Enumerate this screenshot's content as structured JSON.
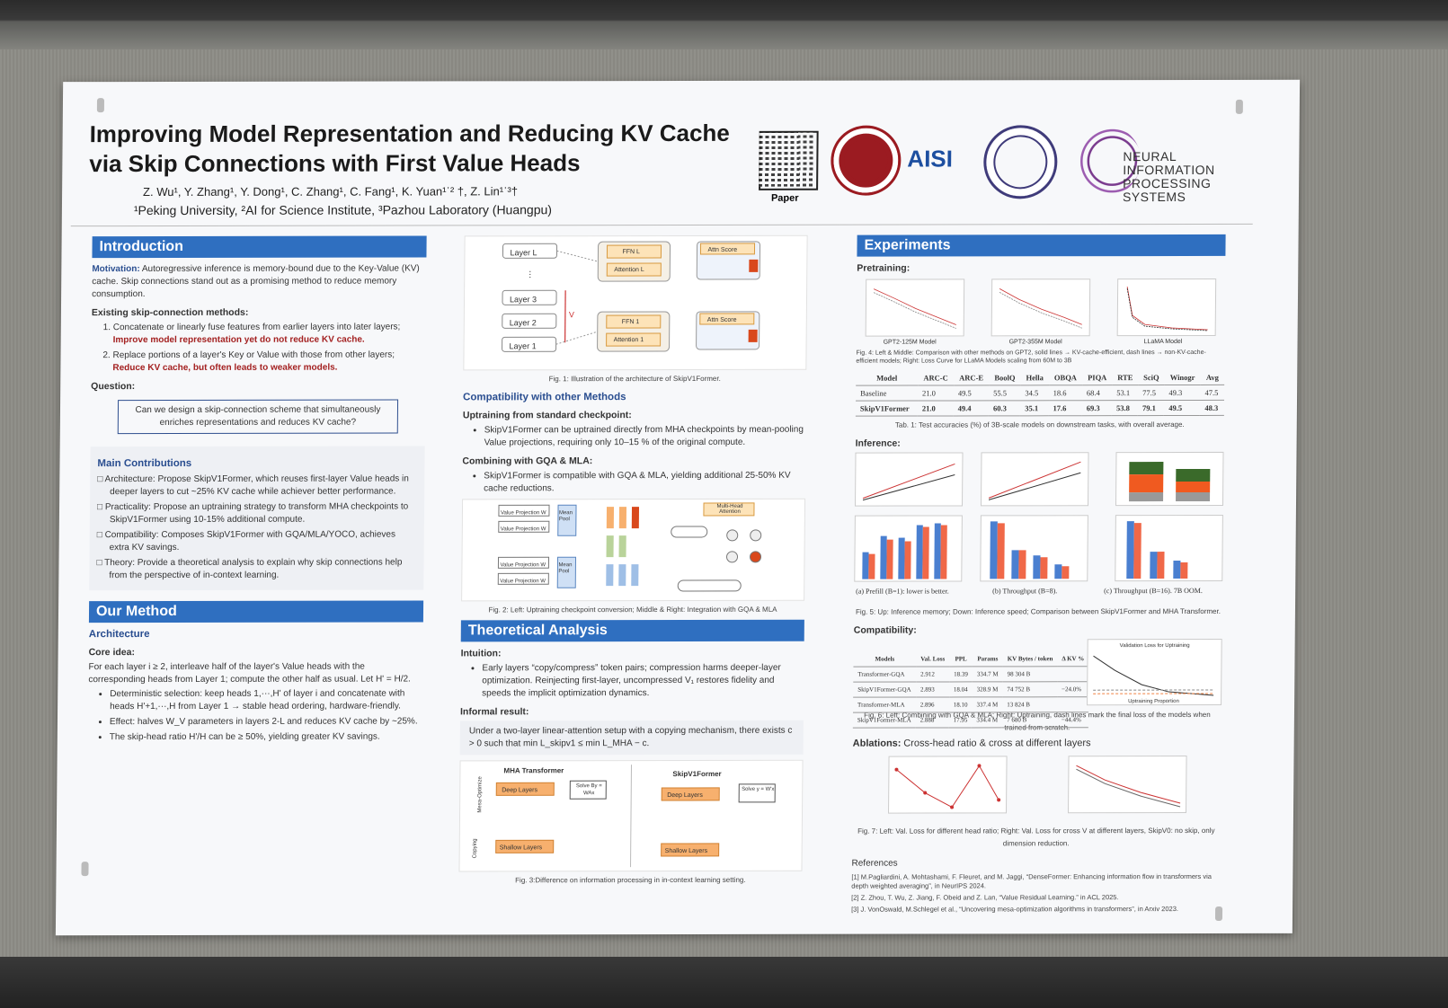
{
  "header": {
    "title": "Improving Model Representation and Reducing KV Cache via Skip Connections with First Value Heads",
    "authors": "Z. Wu¹, Y. Zhang¹, Y. Dong¹, C. Zhang¹, C. Fang¹, K. Yuan¹ˈ² †, Z. Lin¹ˈ³†",
    "affiliations": "¹Peking University, ²AI for Science Institute, ³Pazhou Laboratory (Huangpu)",
    "qr_label": "Paper",
    "aisi_logo": "AISI",
    "neurips_text": "NEURAL INFORMATION PROCESSING SYSTEMS"
  },
  "intro": {
    "heading": "Introduction",
    "motivation_label": "Motivation:",
    "motivation": "Autoregressive inference is memory-bound due to the Key-Value (KV) cache. Skip connections stand out as a promising method to reduce memory consumption.",
    "existing_label": "Existing skip-connection methods:",
    "item1": "Concatenate or linearly fuse  features from earlier layers into later layers;",
    "item1_red": "Improve model representation yet do not reduce KV cache.",
    "item2": "Replace portions of a layer's Key or Value with those from other layers;",
    "item2_red": "Reduce KV cache, but often leads to weaker models.",
    "question_label": "Question:",
    "question": "Can we design a skip-connection scheme that simultaneously enriches representations and reduces KV cache?"
  },
  "contrib": {
    "heading": "Main Contributions",
    "items": [
      "Architecture: Propose SkipV1Former, which reuses first-layer Value heads in deeper layers to cut ~25% KV cache while achiever better performance.",
      "Practicality: Propose an uptraining strategy to transform MHA checkpoints to SkipV1Former using 10-15% additional compute.",
      "Compatibility: Composes SkipV1Former with GQA/MLA/YOCO, achieves extra KV savings.",
      "Theory: Provide a theoretical analysis to explain why skip connections help from the perspective of in-context learning."
    ]
  },
  "method": {
    "heading": "Our Method",
    "arch": "Architecture",
    "core_label": "Core idea:",
    "core": "For each layer i ≥ 2, interleave half of the layer's Value heads with the corresponding heads from Layer 1; compute the other half as usual. Let H' = H/2.",
    "bullets": [
      "Deterministic selection: keep heads 1,···,H' of layer i and concatenate with heads H'+1,···,H from Layer 1 → stable head ordering, hardware-friendly.",
      "Effect: halves W_V parameters in layers 2-L and reduces KV cache by ~25%.",
      "The skip-head ratio H'/H can be ≥ 50%, yielding greater KV savings."
    ]
  },
  "fig1": {
    "layers": [
      "Layer L",
      "⋮",
      "Layer 3",
      "Layer 2",
      "Layer 1"
    ],
    "ffn_top": "FFN L",
    "attn_top": "Attention L",
    "ffn_bot": "FFN 1",
    "attn_bot": "Attention 1",
    "score": "Attn Score",
    "v_label": "V",
    "caption": "Fig. 1: Illustration of the architecture of SkipV1Former."
  },
  "compat": {
    "heading": "Compatibility with other Methods",
    "uptrain_label": "Uptraining from standard checkpoint:",
    "uptrain": "SkipV1Former can be uptrained directly from MHA checkpoints by mean-pooling Value projections, requiring only 10–15 % of the original compute.",
    "gqa_label": "Combining with GQA & MLA:",
    "gqa": "SkipV1Former is compatible with GQA & MLA, yielding additional 25-50% KV cache reductions.",
    "fig2_box1": "Value Projection W",
    "fig2_pool": "Mean Pool",
    "fig2_mh": "Multi-Head Attention",
    "fig2_caption": "Fig. 2: Left: Uptraining checkpoint conversion; Middle & Right: Integration with GQA & MLA"
  },
  "theory": {
    "heading": "Theoretical Analysis",
    "intuition_label": "Intuition:",
    "intuition": "Early layers “copy/compress” token pairs; compression harms deeper-layer optimization. Reinjecting first-layer, uncompressed V₁ restores fidelity and speeds the implicit optimization dynamics.",
    "informal_label": "Informal result:",
    "informal": "Under a two-layer linear-attention setup with a copying mechanism, there exists c > 0 such that min L_skipv1 ≤ min L_MHA − c.",
    "mha": "MHA Transformer",
    "skip": "SkipV1Former",
    "deep": "Deep Layers",
    "shallow": "Shallow Layers",
    "solve_mha": "Solve By = WAx",
    "solve_skip": "Solve y = W'x",
    "mesa": "Mesa-Optimize",
    "copying": "Copying",
    "fig3_caption": "Fig. 3:Difference on information processing in in-context learning setting."
  },
  "experiments": {
    "heading": "Experiments",
    "pretraining": "Pretraining:",
    "pre_charts": [
      "GPT2-125M Model",
      "GPT2-355M Model",
      "LLaMA Model"
    ],
    "fig4_caption": "Fig. 4: Left & Middle: Comparison with other methods on GPT2, solid lines → KV-cache-efficient, dash lines → non-KV-cache-efficient models; Right: Loss Curve for LLaMA Models scaling from 60M to 3B",
    "table1": {
      "headers": [
        "Model",
        "ARC-C",
        "ARC-E",
        "BoolQ",
        "Hella",
        "OBQA",
        "PIQA",
        "RTE",
        "SciQ",
        "Winogr",
        "Avg"
      ],
      "rows": [
        [
          "Baseline",
          "21.0",
          "49.5",
          "55.5",
          "34.5",
          "18.6",
          "68.4",
          "53.1",
          "77.5",
          "49.3",
          "47.5"
        ],
        [
          "SkipV1Former",
          "21.0",
          "49.4",
          "60.3",
          "35.1",
          "17.6",
          "69.3",
          "53.8",
          "79.1",
          "49.5",
          "48.3"
        ]
      ],
      "caption": "Tab. 1: Test accuracies (%) of 3B-scale models on downstream tasks, with overall average."
    },
    "inference": "Inference:",
    "inf_labels": [
      "(a) Prefill (B=1): lower is better.",
      "(b) Throughput (B=8).",
      "(c) Throughput (B=16). 7B OOM."
    ],
    "fig5_caption": "Fig. 5: Up: Inference memory; Down: Inference speed; Comparison between SkipV1Former and MHA Transformer.",
    "compatibility": "Compatibility:",
    "table2": {
      "headers": [
        "Models",
        "Val. Loss",
        "PPL",
        "Params",
        "KV Bytes / token",
        "Δ KV %"
      ],
      "rows": [
        [
          "Transformer-GQA",
          "2.912",
          "18.39",
          "334.7 M",
          "98 304 B",
          ""
        ],
        [
          "SkipV1Former-GQA",
          "2.893",
          "18.04",
          "328.9 M",
          "74 752 B",
          "−24.0%"
        ],
        [
          "Transformer-MLA",
          "2.896",
          "18.10",
          "337.4 M",
          "13 824 B",
          ""
        ],
        [
          "SkipV1Former-MLA",
          "2.888",
          "17.95",
          "334.4 M",
          "7 680 B",
          "−44.4%"
        ]
      ]
    },
    "uptrain_chart": "Validation Loss for Uptraining",
    "uptrain_xlabel": "Uptraining Proportion",
    "fig6_caption": "Fig. 6: Left: Combining with GQA & MLA; Right: Uptraining, dash lines mark the final loss of the models when trained from scratch.",
    "ablations_label": "Ablations:",
    "ablations": "Cross-head ratio & cross at different layers",
    "fig7_caption": "Fig. 7: Left: Val. Loss for different head ratio; Right: Val. Loss for cross V at different layers, SkipV0: no skip, only dimension reduction."
  },
  "refs": {
    "heading": "References",
    "items": [
      "[1] M.Pagliardini, A. Mohtashami, F. Fleuret, and M. Jaggi, “DenseFormer: Enhancing information flow in transformers via depth weighted averaging”, in NeurIPS 2024.",
      "[2] Z. Zhou, T. Wu, Z. Jiang, F. Obeid and Z. Lan, “Value Residual Learning.” in ACL 2025.",
      "[3] J. VonOswald, M.Schlegel et al., “Uncovering mesa-optimization algorithms in transformers”, in Arxiv 2023."
    ]
  },
  "colors": {
    "accent": "#2f6fc0",
    "red": "#a32020",
    "orange": "#f08040",
    "blue": "#4a7fd0"
  }
}
